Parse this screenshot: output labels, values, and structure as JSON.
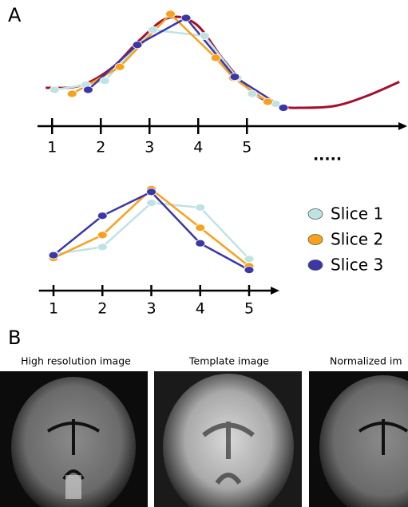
{
  "panel_labels": [
    "A",
    "B"
  ],
  "chart_data": [
    {
      "type": "line",
      "annotation": ".....",
      "xlim": [
        0.75,
        8.25
      ],
      "ylim": [
        0,
        1
      ],
      "xticks": [
        1,
        2,
        3,
        4,
        5
      ],
      "curve": {
        "color": "#a3102e",
        "x": [
          0.87,
          1.57,
          2.23,
          2.8,
          3.38,
          3.95,
          4.52,
          5.1,
          5.67,
          6.16,
          6.82,
          7.47,
          8.13
        ],
        "values": [
          0.24,
          0.26,
          0.44,
          0.72,
          0.94,
          0.88,
          0.52,
          0.2,
          0.06,
          0.04,
          0.06,
          0.16,
          0.3
        ]
      },
      "series": [
        {
          "color": "#bfe3e3",
          "x": [
            1.05,
            1.69,
            2.08,
            3.07,
            4.13,
            4.8,
            5.11,
            5.59
          ],
          "values": [
            0.22,
            0.27,
            0.31,
            0.82,
            0.76,
            0.34,
            0.18,
            0.08
          ]
        },
        {
          "color": "#f8a11c",
          "x": [
            1.41,
            2.39,
            3.43,
            4.36,
            4.72,
            5.43
          ],
          "values": [
            0.18,
            0.45,
            0.98,
            0.54,
            0.34,
            0.1
          ]
        },
        {
          "color": "#3b37a8",
          "x": [
            1.74,
            2.75,
            3.75,
            4.75,
            5.75
          ],
          "values": [
            0.22,
            0.67,
            0.94,
            0.35,
            0.04
          ]
        }
      ]
    },
    {
      "type": "line",
      "xlim": [
        0.75,
        5.6
      ],
      "ylim": [
        0,
        1
      ],
      "xticks": [
        1,
        2,
        3,
        4,
        5
      ],
      "series": [
        {
          "name": "Slice 1",
          "color": "#bfe3e3",
          "x": [
            1,
            2,
            3,
            4,
            5
          ],
          "values": [
            0.23,
            0.31,
            0.79,
            0.74,
            0.18
          ]
        },
        {
          "name": "Slice 2",
          "color": "#f8a11c",
          "x": [
            1,
            2,
            3,
            4,
            5
          ],
          "values": [
            0.19,
            0.44,
            0.94,
            0.52,
            0.1
          ]
        },
        {
          "name": "Slice 3",
          "color": "#3b37a8",
          "x": [
            1,
            2,
            3,
            4,
            5
          ],
          "values": [
            0.22,
            0.65,
            0.91,
            0.35,
            0.06
          ]
        }
      ]
    }
  ],
  "images": [
    {
      "title": "High resolution image"
    },
    {
      "title": "Template image"
    },
    {
      "title": "Normalized im"
    }
  ]
}
